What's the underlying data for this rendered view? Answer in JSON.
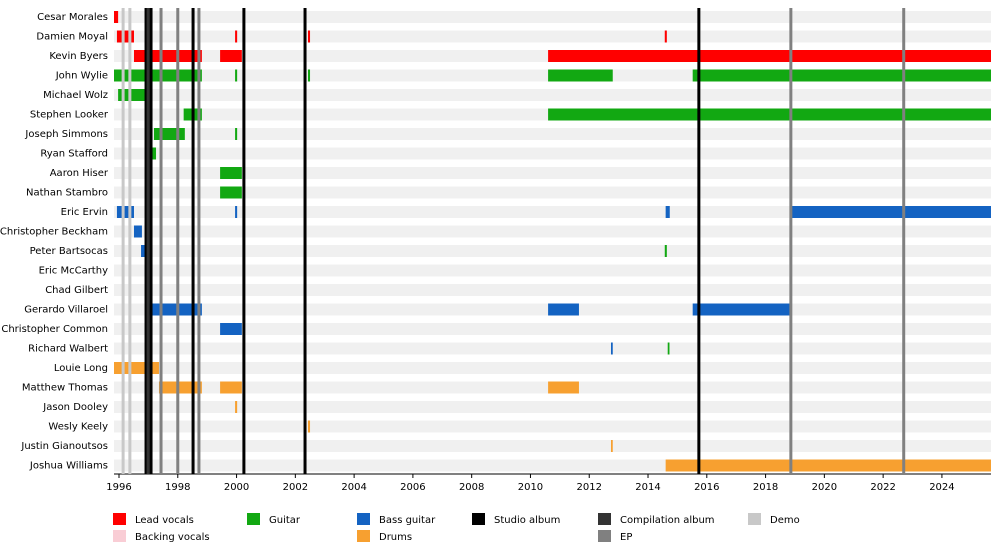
{
  "chart_data": {
    "type": "timeline",
    "xlim": [
      1995.83,
      2025.67
    ],
    "xticks": [
      1996,
      1998,
      2000,
      2002,
      2004,
      2006,
      2008,
      2010,
      2012,
      2014,
      2016,
      2018,
      2020,
      2022,
      2024
    ],
    "roles": [
      {
        "name": "Lead vocals",
        "color": "#ff0000"
      },
      {
        "name": "Backing vocals",
        "color": "#f9cdd5"
      },
      {
        "name": "Guitar",
        "color": "#12a812"
      },
      {
        "name": "Bass guitar",
        "color": "#1463c2"
      },
      {
        "name": "Drums",
        "color": "#f7a030"
      }
    ],
    "events": [
      {
        "name": "Studio album",
        "color": "#000000",
        "values": [
          1996.92,
          1997.09,
          1998.52,
          2000.25,
          2002.33,
          2015.73
        ]
      },
      {
        "name": "Compilation album",
        "color": "#333333",
        "values": [
          1996.99
        ]
      },
      {
        "name": "EP",
        "color": "#808080",
        "values": [
          1997.43,
          1998.0,
          1998.72,
          2018.86,
          2022.7
        ]
      },
      {
        "name": "Demo",
        "color": "#c8c8c8",
        "values": [
          1996.14,
          1996.37
        ]
      }
    ],
    "members": [
      {
        "name": "Cesar Morales",
        "spans": [
          {
            "role": "Lead vocals",
            "start": 1995.83,
            "end": 1995.97
          }
        ]
      },
      {
        "name": "Damien Moyal",
        "spans": [
          {
            "role": "Lead vocals",
            "start": 1995.93,
            "end": 1996.51
          },
          {
            "role": "Lead vocals",
            "start": 1999.95,
            "end": 2000.02
          },
          {
            "role": "Lead vocals",
            "start": 2002.43,
            "end": 2002.5
          },
          {
            "role": "Lead vocals",
            "start": 2014.57,
            "end": 2014.64
          }
        ]
      },
      {
        "name": "Kevin Byers",
        "spans": [
          {
            "role": "Lead vocals",
            "start": 1996.51,
            "end": 1998.82
          },
          {
            "role": "Lead vocals",
            "start": 1999.44,
            "end": 2000.18
          },
          {
            "role": "Lead vocals",
            "start": 2010.6,
            "end": 2025.67
          }
        ]
      },
      {
        "name": "John Wylie",
        "spans": [
          {
            "role": "Guitar",
            "start": 1995.83,
            "end": 1998.82
          },
          {
            "role": "Guitar",
            "start": 1999.95,
            "end": 2000.02
          },
          {
            "role": "Guitar",
            "start": 2002.43,
            "end": 2002.5
          },
          {
            "role": "Guitar",
            "start": 2010.6,
            "end": 2012.8
          },
          {
            "role": "Guitar",
            "start": 2015.52,
            "end": 2025.67
          }
        ]
      },
      {
        "name": "Michael Wolz",
        "spans": [
          {
            "role": "Guitar",
            "start": 1995.97,
            "end": 1996.99
          }
        ]
      },
      {
        "name": "Stephen Looker",
        "spans": [
          {
            "role": "Guitar",
            "start": 1998.2,
            "end": 1998.82
          },
          {
            "role": "Guitar",
            "start": 2010.6,
            "end": 2025.67
          }
        ]
      },
      {
        "name": "Joseph Simmons",
        "spans": [
          {
            "role": "Guitar",
            "start": 1997.19,
            "end": 1998.24
          },
          {
            "role": "Guitar",
            "start": 1999.95,
            "end": 2000.02
          }
        ]
      },
      {
        "name": "Ryan Stafford",
        "spans": [
          {
            "role": "Guitar",
            "start": 1997.02,
            "end": 1997.26
          }
        ]
      },
      {
        "name": "Aaron Hiser",
        "spans": [
          {
            "role": "Guitar",
            "start": 1999.44,
            "end": 2000.18
          }
        ]
      },
      {
        "name": "Nathan Stambro",
        "spans": [
          {
            "role": "Guitar",
            "start": 1999.44,
            "end": 2000.18
          }
        ]
      },
      {
        "name": "Eric Ervin",
        "spans": [
          {
            "role": "Bass guitar",
            "start": 1995.93,
            "end": 1996.51
          },
          {
            "role": "Bass guitar",
            "start": 1999.95,
            "end": 2000.02
          },
          {
            "role": "Bass guitar",
            "start": 2014.6,
            "end": 2014.74
          },
          {
            "role": "Bass guitar",
            "start": 2018.86,
            "end": 2025.67
          }
        ]
      },
      {
        "name": "Christopher Beckham",
        "spans": [
          {
            "role": "Bass guitar",
            "start": 1996.51,
            "end": 1996.78
          }
        ]
      },
      {
        "name": "Peter Bartsocas",
        "spans": [
          {
            "role": "Bass guitar",
            "start": 1996.75,
            "end": 1996.92
          },
          {
            "role": "Guitar",
            "start": 2014.57,
            "end": 2014.64
          }
        ]
      },
      {
        "name": "Eric McCarthy",
        "spans": [
          {
            "role": "Bass guitar",
            "start": 1996.88,
            "end": 1997.02
          }
        ]
      },
      {
        "name": "Chad Gilbert",
        "spans": [
          {
            "role": "Bass guitar",
            "start": 1996.99,
            "end": 1997.02
          }
        ]
      },
      {
        "name": "Gerardo Villaroel",
        "spans": [
          {
            "role": "Bass guitar",
            "start": 1997.02,
            "end": 1998.82
          },
          {
            "role": "Bass guitar",
            "start": 2010.6,
            "end": 2011.65
          },
          {
            "role": "Bass guitar",
            "start": 2015.52,
            "end": 2018.86
          }
        ]
      },
      {
        "name": "Christopher Common",
        "spans": [
          {
            "role": "Bass guitar",
            "start": 1999.44,
            "end": 2000.18
          }
        ]
      },
      {
        "name": "Richard Walbert",
        "spans": [
          {
            "role": "Bass guitar",
            "start": 2012.74,
            "end": 2012.8
          },
          {
            "role": "Guitar",
            "start": 2014.67,
            "end": 2014.73
          }
        ]
      },
      {
        "name": "Louie Long",
        "spans": [
          {
            "role": "Drums",
            "start": 1995.83,
            "end": 1997.36
          }
        ]
      },
      {
        "name": "Matthew Thomas",
        "spans": [
          {
            "role": "Drums",
            "start": 1997.36,
            "end": 1998.82
          },
          {
            "role": "Drums",
            "start": 1999.44,
            "end": 2000.18
          },
          {
            "role": "Drums",
            "start": 2010.6,
            "end": 2011.65
          }
        ]
      },
      {
        "name": "Jason Dooley",
        "spans": [
          {
            "role": "Drums",
            "start": 1999.95,
            "end": 2000.02
          }
        ]
      },
      {
        "name": "Wesly Keely",
        "spans": [
          {
            "role": "Drums",
            "start": 2002.43,
            "end": 2002.5
          }
        ]
      },
      {
        "name": "Justin Gianoutsos",
        "spans": [
          {
            "role": "Drums",
            "start": 2012.74,
            "end": 2012.8
          }
        ]
      },
      {
        "name": "Joshua Williams",
        "spans": [
          {
            "role": "Drums",
            "start": 2014.6,
            "end": 2025.67
          }
        ]
      }
    ]
  }
}
